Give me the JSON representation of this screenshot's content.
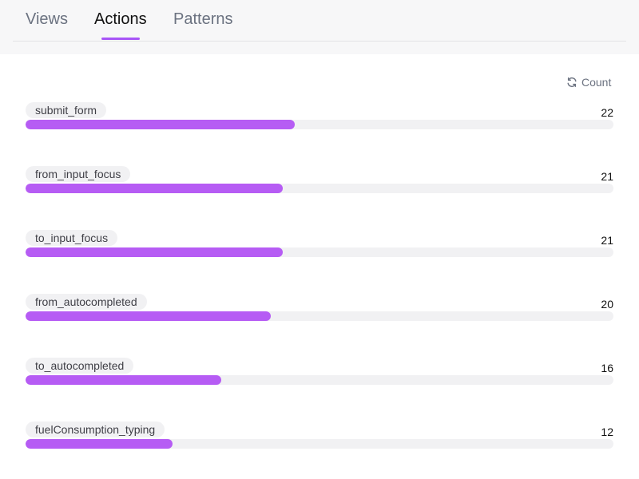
{
  "tabs": [
    {
      "label": "Views",
      "active": false
    },
    {
      "label": "Actions",
      "active": true
    },
    {
      "label": "Patterns",
      "active": false
    }
  ],
  "sort": {
    "label": "Count",
    "icon": "refresh-icon"
  },
  "colors": {
    "accent": "#a855f7",
    "bar": "#b65cf4",
    "track": "#f1f1f3"
  },
  "actions": [
    {
      "label": "submit_form",
      "count": "22",
      "fill": 0.458
    },
    {
      "label": "from_input_focus",
      "count": "21",
      "fill": 0.438
    },
    {
      "label": "to_input_focus",
      "count": "21",
      "fill": 0.438
    },
    {
      "label": "from_autocompleted",
      "count": "20",
      "fill": 0.417
    },
    {
      "label": "to_autocompleted",
      "count": "16",
      "fill": 0.333
    },
    {
      "label": "fuelConsumption_typing",
      "count": "12",
      "fill": 0.25
    }
  ]
}
